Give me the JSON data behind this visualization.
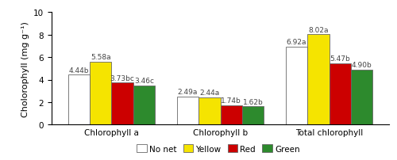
{
  "groups": [
    "Chlorophyll a",
    "Chlorophyll b",
    "Total chlorophyll"
  ],
  "series": {
    "No net": [
      4.44,
      2.49,
      6.92
    ],
    "Yellow": [
      5.58,
      2.44,
      8.02
    ],
    "Red": [
      3.73,
      1.74,
      5.47
    ],
    "Green": [
      3.46,
      1.62,
      4.9
    ]
  },
  "labels": {
    "No net": [
      "4.44b",
      "2.49a",
      "6.92a"
    ],
    "Yellow": [
      "5.58a",
      "2.44a",
      "8.02a"
    ],
    "Red": [
      "3.73bc",
      "1.74b",
      "5.47b"
    ],
    "Green": [
      "3.46c",
      "1.62b",
      "4.90b"
    ]
  },
  "colors": {
    "No net": "#ffffff",
    "Yellow": "#f5e400",
    "Red": "#cc0000",
    "Green": "#2d8a2d"
  },
  "edge_color": "#666666",
  "ylabel": "Cholorophyll (mg g⁻¹)",
  "ylim": [
    0,
    10
  ],
  "yticks": [
    0,
    2,
    4,
    6,
    8,
    10
  ],
  "legend_order": [
    "No net",
    "Yellow",
    "Red",
    "Green"
  ],
  "bar_width": 0.2,
  "label_fontsize": 6.5,
  "axis_fontsize": 8,
  "tick_fontsize": 7.5,
  "legend_fontsize": 7.5
}
